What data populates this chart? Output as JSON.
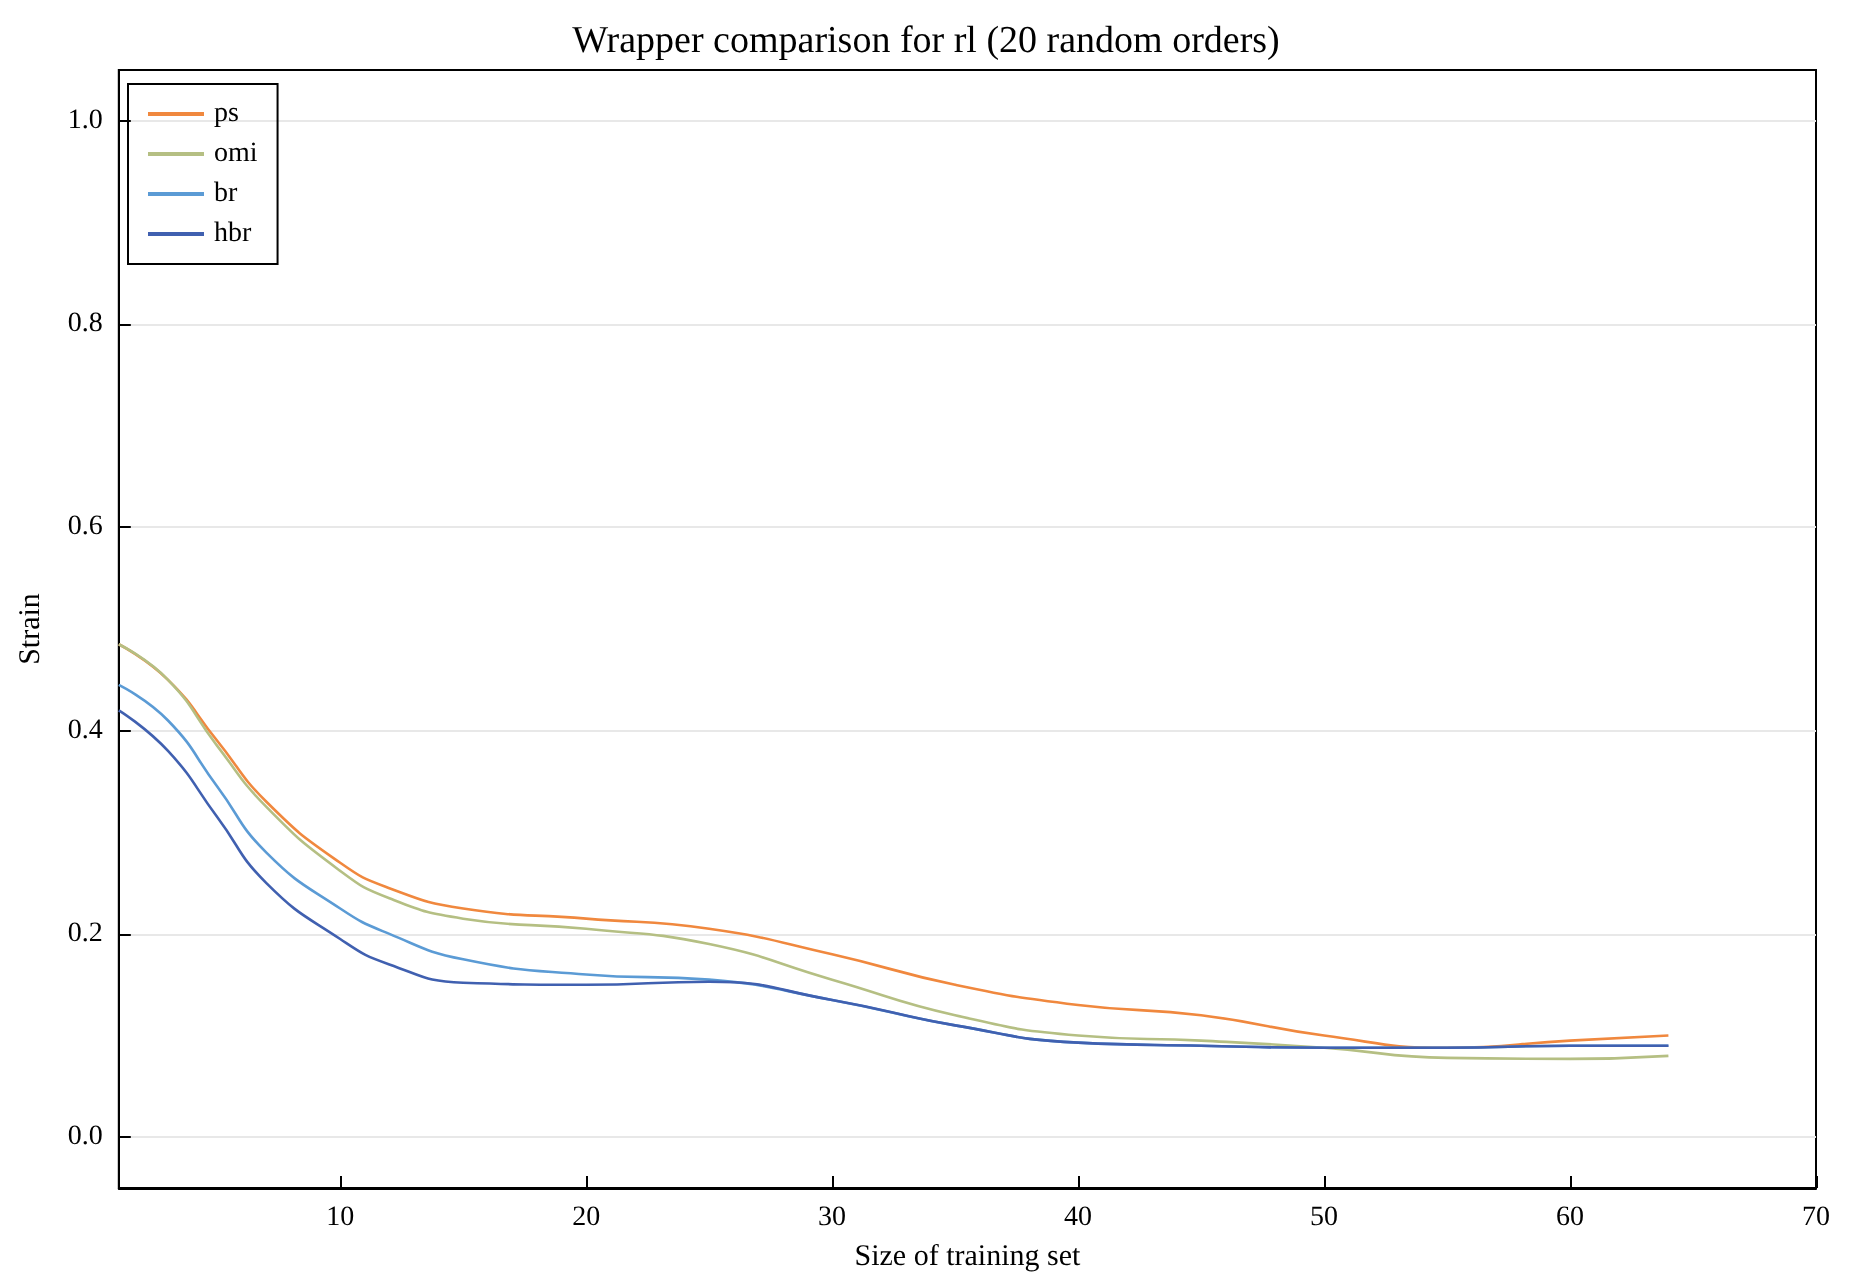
{
  "chart_data": {
    "type": "line",
    "title": "Wrapper comparison for rl (20 random orders)",
    "xlabel": "Size of training set",
    "ylabel": "Strain",
    "x": [
      1,
      3,
      5,
      7,
      10,
      12,
      15,
      20,
      25,
      30,
      35,
      40,
      45,
      50,
      55,
      60,
      64
    ],
    "series": [
      {
        "name": "ps",
        "color": "#f0883e",
        "values": [
          0.485,
          0.45,
          0.39,
          0.33,
          0.27,
          0.245,
          0.225,
          0.215,
          0.205,
          0.18,
          0.15,
          0.13,
          0.12,
          0.1,
          0.088,
          0.095,
          0.1
        ]
      },
      {
        "name": "omi",
        "color": "#b5bf83",
        "values": [
          0.485,
          0.45,
          0.385,
          0.325,
          0.262,
          0.235,
          0.215,
          0.205,
          0.19,
          0.155,
          0.12,
          0.1,
          0.095,
          0.088,
          0.078,
          0.077,
          0.08
        ]
      },
      {
        "name": "br",
        "color": "#5b9bd5",
        "values": [
          0.445,
          0.41,
          0.345,
          0.28,
          0.225,
          0.2,
          0.175,
          0.16,
          0.155,
          0.135,
          0.11,
          0.093,
          0.09,
          0.088,
          0.088,
          0.09,
          0.09
        ]
      },
      {
        "name": "hbr",
        "color": "#4060b0",
        "values": [
          0.42,
          0.38,
          0.315,
          0.25,
          0.195,
          0.17,
          0.152,
          0.15,
          0.153,
          0.135,
          0.11,
          0.093,
          0.09,
          0.088,
          0.088,
          0.09,
          0.09
        ]
      }
    ],
    "xlim": [
      1,
      70
    ],
    "xticks": [
      10,
      20,
      30,
      40,
      50,
      60,
      70
    ],
    "ylim": [
      -0.05,
      1.05
    ],
    "yticks": [
      {
        "value": 0,
        "label": "0.0"
      },
      0.2,
      0.4,
      0.6,
      0.8,
      {
        "value": 1,
        "label": "1.0"
      }
    ],
    "grid": "y",
    "legend": "top left",
    "marker": "none",
    "line_style": "solid"
  }
}
